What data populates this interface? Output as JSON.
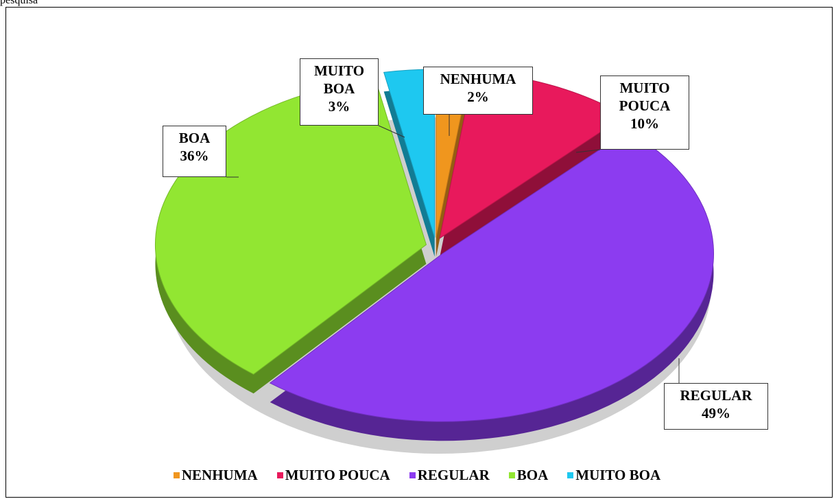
{
  "chart_data": {
    "type": "pie",
    "caption": "pesquisa",
    "categories": [
      "NENHUMA",
      "MUITO POUCA",
      "REGULAR",
      "BOA",
      "MUITO BOA"
    ],
    "values": [
      2,
      10,
      49,
      36,
      3
    ],
    "value_labels": [
      "2%",
      "10%",
      "49%",
      "36%",
      "3%"
    ],
    "colors": [
      "#f0961e",
      "#e8195c",
      "#8c3cf0",
      "#92e632",
      "#1ec8f0"
    ],
    "legend": "bottom"
  }
}
